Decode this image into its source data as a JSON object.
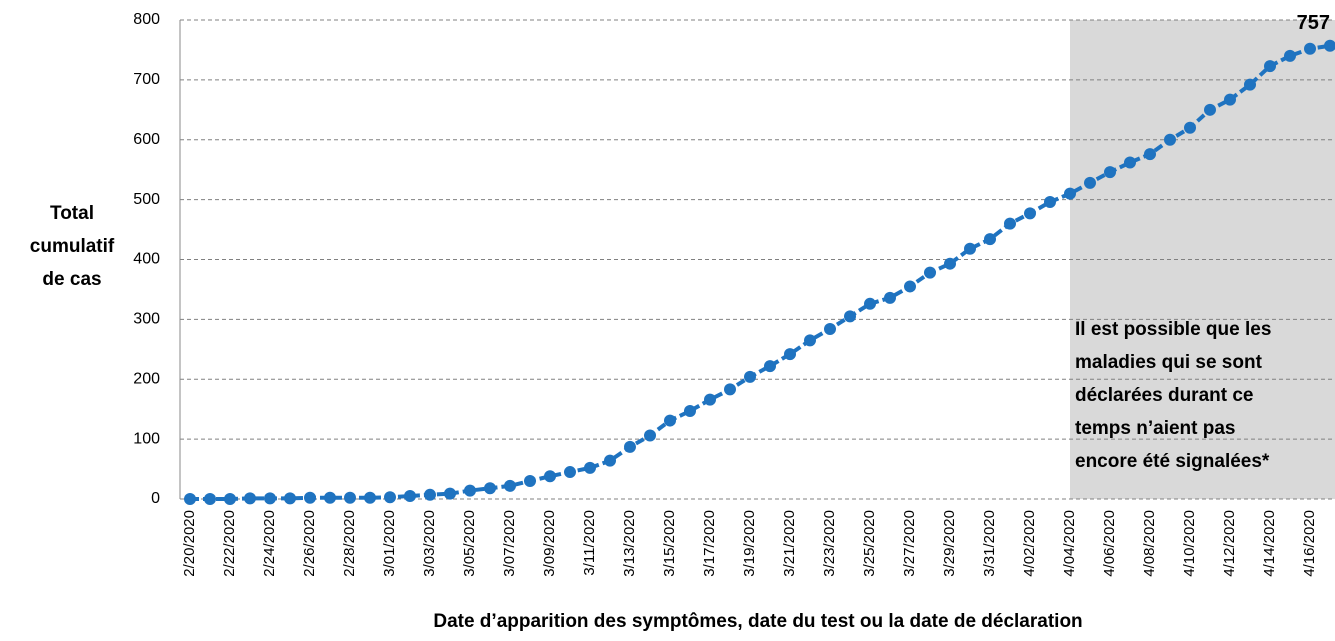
{
  "chart_data": {
    "type": "line",
    "ylabel": [
      "Total",
      "cumulatif",
      "de cas"
    ],
    "xlabel": "Date d’apparition des symptômes, date du test ou la date de déclaration",
    "categories": [
      "2/20/2020",
      null,
      "2/22/2020",
      null,
      "2/24/2020",
      null,
      "2/26/2020",
      null,
      "2/28/2020",
      null,
      "3/01/2020",
      null,
      "3/03/2020",
      null,
      "3/05/2020",
      null,
      "3/07/2020",
      null,
      "3/09/2020",
      null,
      "3/11/2020",
      null,
      "3/13/2020",
      null,
      "3/15/2020",
      null,
      "3/17/2020",
      null,
      "3/19/2020",
      null,
      "3/21/2020",
      null,
      "3/23/2020",
      null,
      "3/25/2020",
      null,
      "3/27/2020",
      null,
      "3/29/2020",
      null,
      "3/31/2020",
      null,
      "4/02/2020",
      null,
      "4/04/2020",
      null,
      "4/06/2020",
      null,
      "4/08/2020",
      null,
      "4/10/2020",
      null,
      "4/12/2020",
      null,
      "4/14/2020",
      null,
      "4/16/2020",
      null
    ],
    "series": [
      {
        "name": "Total cumulatif de cas",
        "color": "#1f73c0",
        "values": [
          0,
          0,
          0,
          1,
          1,
          1,
          2,
          2,
          2,
          2,
          3,
          5,
          7,
          9,
          14,
          18,
          22,
          30,
          38,
          45,
          52,
          64,
          87,
          106,
          131,
          147,
          166,
          183,
          204,
          222,
          242,
          265,
          284,
          305,
          326,
          336,
          355,
          378,
          393,
          418,
          434,
          460,
          477,
          496,
          510,
          528,
          546,
          562,
          576,
          600,
          620,
          650,
          667,
          692,
          723,
          740,
          752,
          757
        ]
      }
    ],
    "label_last_value": true,
    "ylim": [
      0,
      800
    ],
    "yticks": [
      0,
      100,
      200,
      300,
      400,
      500,
      600,
      700,
      800
    ],
    "grid": true,
    "shade_from": "4/04/2020",
    "shade_color": "#d9d9d9",
    "annotation": [
      "Il est possible que les",
      "maladies qui se sont",
      "déclarées durant ce",
      "temps n’aient pas",
      "encore été signalées*"
    ]
  }
}
